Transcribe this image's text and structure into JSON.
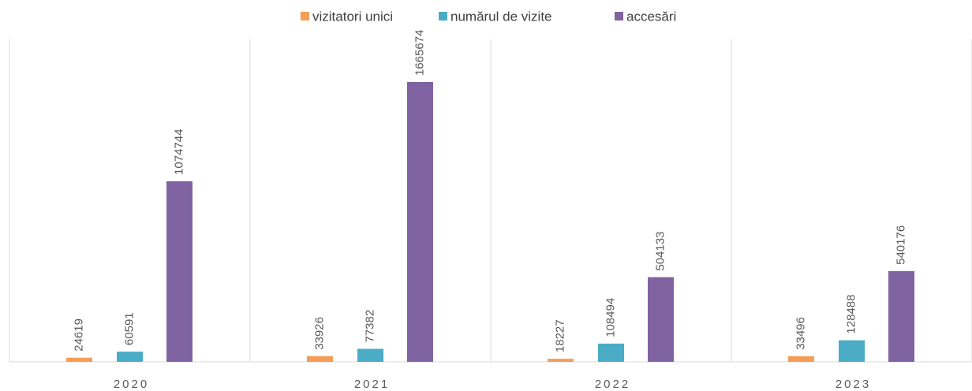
{
  "chart_data": {
    "type": "bar",
    "categories": [
      "2020",
      "2021",
      "2022",
      "2023"
    ],
    "series": [
      {
        "name": "vizitatori unici",
        "color": "#f59d56",
        "values": [
          24619,
          33926,
          18227,
          33496
        ]
      },
      {
        "name": "numărul de vizite",
        "color": "#4bacc6",
        "values": [
          60591,
          77382,
          108494,
          128488
        ]
      },
      {
        "name": "accesări",
        "color": "#8064a2",
        "values": [
          1074744,
          1665674,
          504133,
          540176
        ]
      }
    ]
  }
}
